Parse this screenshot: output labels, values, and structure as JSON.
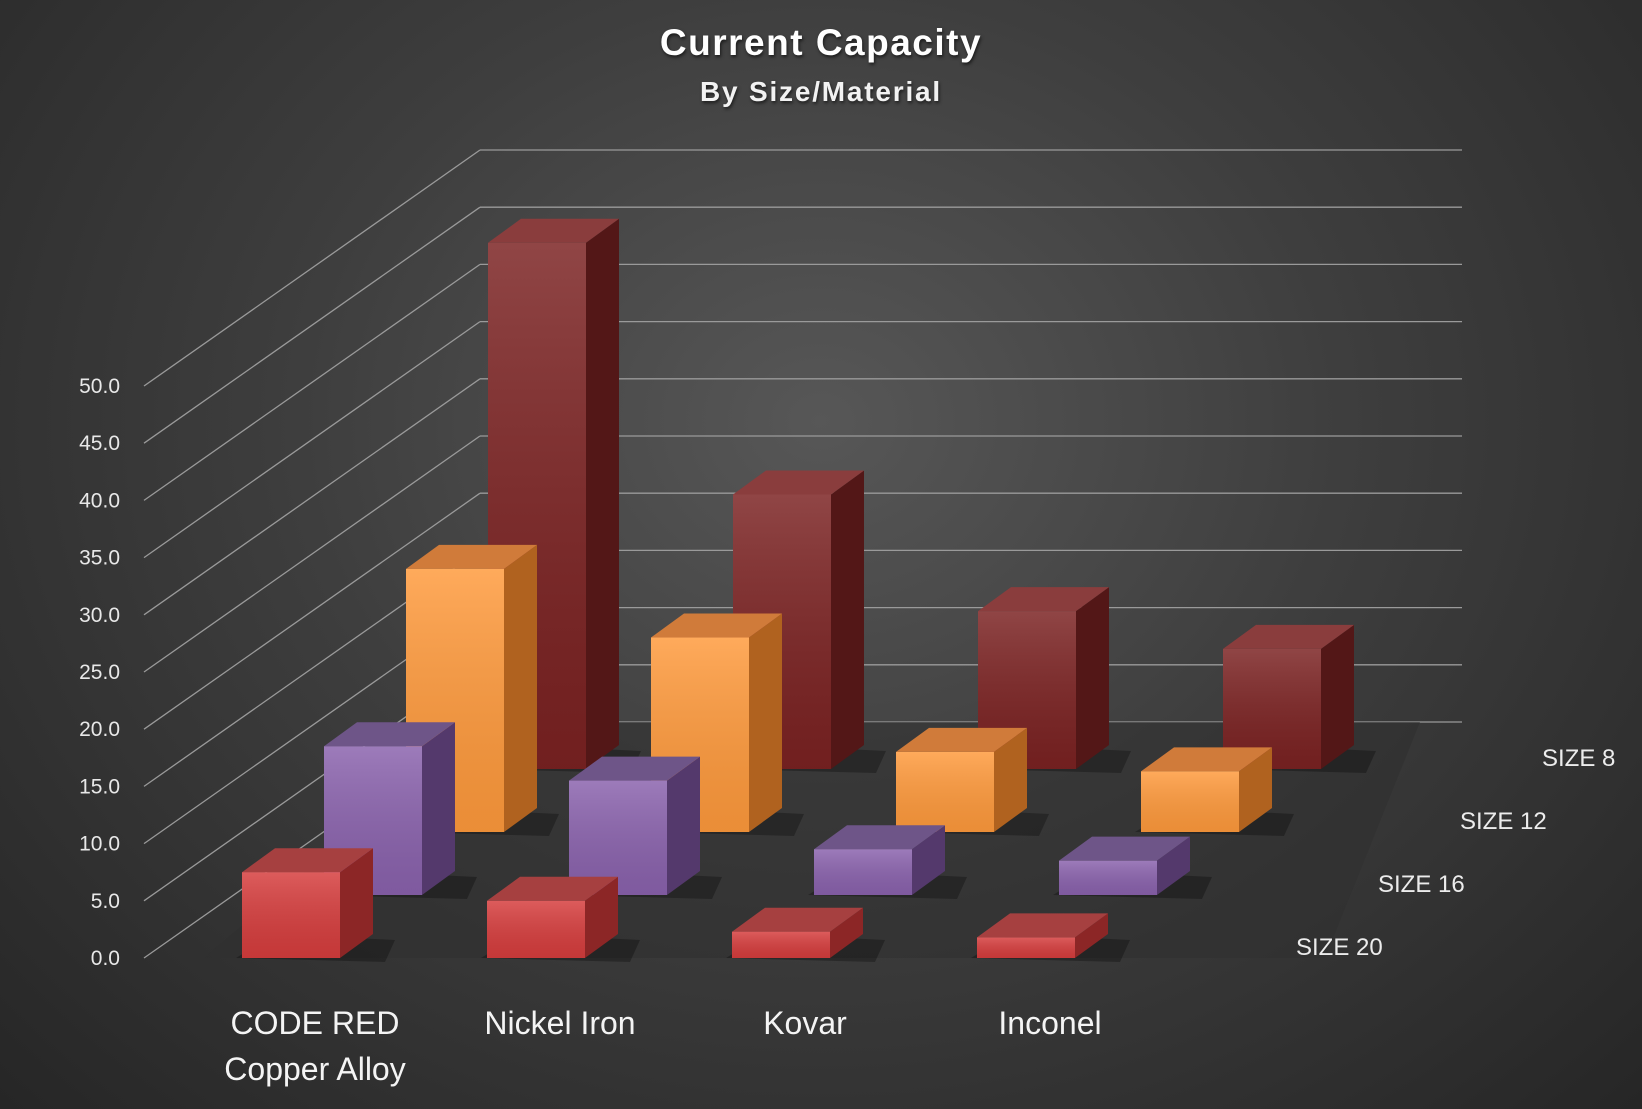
{
  "chart_data": {
    "type": "bar",
    "title": "Current Capacity",
    "subtitle": "By Size/Material",
    "categories": [
      [
        "CODE RED",
        "Copper Alloy"
      ],
      [
        "Nickel Iron"
      ],
      [
        "Kovar"
      ],
      [
        "Inconel"
      ]
    ],
    "series": [
      {
        "name": "SIZE 8",
        "values": [
          46.0,
          24.0,
          13.8,
          10.5
        ]
      },
      {
        "name": "SIZE 12",
        "values": [
          23.0,
          17.0,
          7.0,
          5.3
        ]
      },
      {
        "name": "SIZE 16",
        "values": [
          13.0,
          10.0,
          4.0,
          3.0
        ]
      },
      {
        "name": "SIZE 20",
        "values": [
          7.5,
          5.0,
          2.3,
          1.8
        ]
      }
    ],
    "y_ticks": [
      "0.0",
      "5.0",
      "10.0",
      "15.0",
      "20.0",
      "25.0",
      "30.0",
      "35.0",
      "40.0",
      "45.0",
      "50.0"
    ],
    "ylim": [
      0,
      50
    ],
    "grid": true,
    "legend": "series labels on right depth axis",
    "colors": {
      "SIZE 8": {
        "front": "#7b2222",
        "side": "#531717",
        "top": "#8a3d3d"
      },
      "SIZE 12": {
        "front": "#ff9a3c",
        "side": "#b0621f",
        "top": "#d07b3a"
      },
      "SIZE 16": {
        "front": "#8a62ad",
        "side": "#54396c",
        "top": "#6e5588"
      },
      "SIZE 20": {
        "front": "#d63d3d",
        "side": "#8c2626",
        "top": "#a64040"
      }
    },
    "grid_color": "#9a9a9a"
  }
}
